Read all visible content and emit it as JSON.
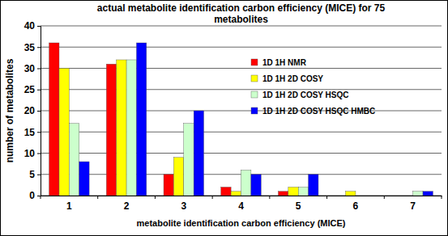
{
  "chart_data": {
    "type": "bar",
    "title": "actual metabolite identification carbon efficiency (MICE) for 75 metabolites",
    "x_label": "metabolite identification carbon efficiency (MICE)",
    "y_label": "number of metabolites",
    "categories": [
      "1",
      "2",
      "3",
      "4",
      "5",
      "6",
      "7"
    ],
    "series": [
      {
        "name": "1D 1H NMR",
        "color": "#ff0000",
        "values": [
          36,
          31,
          5,
          2,
          1,
          0,
          0
        ]
      },
      {
        "name": "1D 1H 2D COSY",
        "color": "#ffff00",
        "values": [
          30,
          32,
          9,
          1,
          2,
          1,
          0
        ]
      },
      {
        "name": "1D 1H 2D COSY HSQC",
        "color": "#ccffcc",
        "values": [
          17,
          32,
          17,
          6,
          2,
          0,
          1
        ]
      },
      {
        "name": "1D 1H 2D COSY HSQC HMBC",
        "color": "#0000ff",
        "values": [
          8,
          36,
          20,
          5,
          5,
          0,
          1
        ]
      }
    ],
    "ylim": [
      0,
      40
    ],
    "yticks": [
      0,
      5,
      10,
      15,
      20,
      25,
      30,
      35,
      40
    ],
    "grid": true,
    "legend": "right"
  }
}
